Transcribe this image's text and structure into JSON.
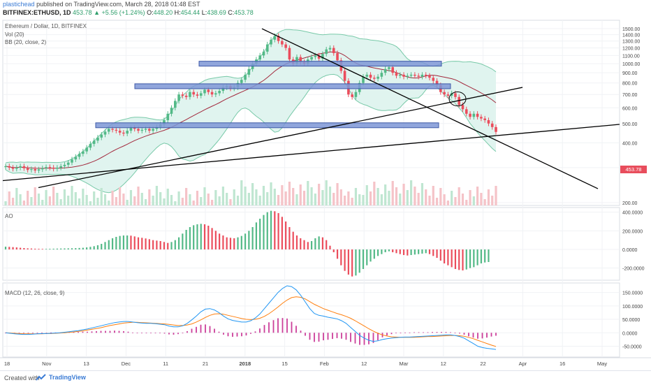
{
  "header": {
    "publisher": "plastichead",
    "published_text": "published on TradingView.com, March 28, 2018 01:48 EST",
    "symbol": "BITFINEX:ETHUSD, 1D",
    "last": "453.78",
    "change": "+5.56 (+1.24%)",
    "open_label": "O:",
    "open": "448.20",
    "high_label": "H:",
    "high": "454.44",
    "low_label": "L:",
    "low": "438.69",
    "close_label": "C:",
    "close": "453.78"
  },
  "legends": {
    "main_title": "Ethereum / Dollar, 1D, BITFINEX",
    "vol": "Vol (20)",
    "bb": "BB (20, close, 2)",
    "ao": "AO",
    "macd": "MACD (12, 26, close, 9)"
  },
  "price_tag": "453.78",
  "footer": {
    "created_with": "Created with",
    "brand": "TradingView"
  },
  "colors": {
    "up": "#53b987",
    "down": "#eb4d5c",
    "bb_fill": "#e0f4ef",
    "bb_line": "#78c9a8",
    "bb_mid": "#a2293d",
    "macd": "#2196f3",
    "signal": "#ff7f0e",
    "hist": "#cc3f9a",
    "sr_box": "#7e96d6"
  },
  "chart_data": [
    {
      "type": "candlestick",
      "title": "Ethereum / Dollar, 1D, BITFINEX",
      "x_ticks": [
        "18",
        "Nov",
        "13",
        "Dec",
        "11",
        "21",
        "2018",
        "15",
        "Feb",
        "12",
        "Mar",
        "12",
        "22",
        "Apr",
        "16",
        "May"
      ],
      "y_ticks": [
        "1500.00",
        "1400.00",
        "1300.00",
        "1200.00",
        "1100.00",
        "1000.00",
        "900.00",
        "800.00",
        "700.00",
        "600.00",
        "500.00",
        "400.00",
        "300.00",
        "200.00"
      ],
      "y_scale": "log",
      "ylim": [
        200,
        1550
      ],
      "close_series": [
        305,
        300,
        296,
        300,
        305,
        298,
        292,
        295,
        290,
        294,
        298,
        302,
        300,
        296,
        300,
        305,
        310,
        318,
        330,
        340,
        352,
        362,
        378,
        395,
        410,
        425,
        440,
        455,
        470,
        465,
        460,
        450,
        445,
        460,
        475,
        470,
        460,
        465,
        470,
        460,
        470,
        480,
        495,
        520,
        560,
        600,
        650,
        700,
        690,
        680,
        720,
        700,
        690,
        710,
        740,
        720,
        700,
        710,
        730,
        760,
        770,
        750,
        760,
        800,
        830,
        880,
        940,
        1000,
        1050,
        1100,
        1150,
        1250,
        1320,
        1380,
        1300,
        1250,
        1200,
        1050,
        1000,
        1080,
        1020,
        1000,
        1050,
        1080,
        1100,
        1060,
        1120,
        1180,
        1200,
        1130,
        1040,
        920,
        820,
        700,
        680,
        720,
        800,
        860,
        880,
        850,
        840,
        860,
        900,
        940,
        960,
        900,
        870,
        880,
        860,
        870,
        880,
        870,
        860,
        880,
        870,
        850,
        820,
        780,
        720,
        700,
        690,
        710,
        680,
        620,
        590,
        560,
        540,
        560,
        540,
        530,
        520,
        500,
        480,
        453.78
      ],
      "volume_scale": "relative",
      "bollinger": {
        "upper_note": "shaded band",
        "mid_color": "#a2293d"
      },
      "annotations": {
        "horizontal_zones": [
          1000,
          770,
          490
        ],
        "trendlines": [
          "descending resistance",
          "ascending support",
          "lower ascending support"
        ]
      }
    },
    {
      "type": "bar",
      "title": "AO",
      "y_ticks": [
        "400.0000",
        "200.0000",
        "0.0000",
        "-200.0000"
      ],
      "ylim": [
        -300,
        420
      ],
      "values": [
        30,
        28,
        25,
        22,
        18,
        15,
        12,
        10,
        8,
        7,
        6,
        6,
        7,
        8,
        9,
        10,
        11,
        12,
        13,
        14,
        16,
        18,
        22,
        28,
        35,
        45,
        60,
        80,
        100,
        120,
        135,
        145,
        150,
        150,
        148,
        140,
        130,
        125,
        118,
        110,
        100,
        95,
        90,
        80,
        70,
        80,
        100,
        130,
        170,
        210,
        240,
        260,
        270,
        275,
        270,
        255,
        230,
        200,
        170,
        150,
        130,
        125,
        120,
        130,
        145,
        170,
        200,
        240,
        290,
        330,
        370,
        400,
        415,
        410,
        390,
        350,
        300,
        240,
        190,
        150,
        120,
        100,
        80,
        90,
        120,
        140,
        130,
        100,
        40,
        -30,
        -100,
        -170,
        -230,
        -270,
        -290,
        -280,
        -250,
        -210,
        -170,
        -130,
        -100,
        -70,
        -50,
        -30,
        -20,
        -30,
        -40,
        -50,
        -60,
        -65,
        -60,
        -55,
        -50,
        -45,
        -40,
        -50,
        -70,
        -90,
        -120,
        -150,
        -170,
        -190,
        -210,
        -220,
        -225,
        -215,
        -200,
        -190,
        -170,
        -150,
        -140,
        -135
      ]
    },
    {
      "type": "line",
      "title": "MACD (12, 26, close, 9)",
      "y_ticks": [
        "150.0000",
        "100.0000",
        "50.0000",
        "0.0000",
        "-50.0000"
      ],
      "ylim": [
        -80,
        175
      ],
      "series": [
        {
          "name": "MACD",
          "values": [
            0,
            -2,
            -4,
            -5,
            -6,
            -6,
            -5,
            -4,
            -3,
            -3,
            -2,
            -1,
            0,
            2,
            4,
            6,
            8,
            11,
            14,
            18,
            22,
            26,
            30,
            34,
            38,
            40,
            42,
            42,
            40,
            38,
            36,
            35,
            35,
            34,
            32,
            30,
            25,
            22,
            22,
            26,
            35,
            48,
            62,
            78,
            88,
            90,
            85,
            75,
            62,
            52,
            46,
            43,
            40,
            40,
            45,
            55,
            70,
            90,
            110,
            130,
            150,
            165,
            175,
            172,
            160,
            140,
            115,
            90,
            72,
            65,
            62,
            58,
            55,
            52,
            45,
            35,
            20,
            5,
            -10,
            -20,
            -28,
            -32,
            -30,
            -25,
            -22,
            -20,
            -18,
            -17,
            -16,
            -16,
            -15,
            -14,
            -13,
            -12,
            -11,
            -10,
            -9,
            -8,
            -8,
            -10,
            -14,
            -20,
            -30,
            -40,
            -50,
            -55,
            -58,
            -60,
            -62
          ]
        },
        {
          "name": "Signal",
          "values": [
            0,
            -1,
            -2,
            -3,
            -4,
            -4,
            -4,
            -4,
            -4,
            -3,
            -3,
            -2,
            -1,
            0,
            2,
            3,
            5,
            7,
            10,
            13,
            16,
            19,
            23,
            27,
            30,
            33,
            36,
            38,
            39,
            39,
            38,
            37,
            36,
            35,
            34,
            33,
            31,
            29,
            27,
            27,
            29,
            33,
            40,
            48,
            57,
            65,
            70,
            71,
            69,
            65,
            61,
            57,
            53,
            50,
            49,
            50,
            54,
            61,
            71,
            83,
            96,
            110,
            122,
            131,
            134,
            132,
            126,
            116,
            106,
            98,
            90,
            84,
            78,
            72,
            67,
            61,
            54,
            45,
            35,
            25,
            15,
            6,
            -2,
            -8,
            -12,
            -15,
            -16,
            -17,
            -17,
            -17,
            -17,
            -16,
            -15,
            -14,
            -14,
            -13,
            -12,
            -11,
            -10,
            -10,
            -11,
            -13,
            -17,
            -22,
            -28,
            -34,
            -40,
            -46,
            -51
          ]
        }
      ]
    }
  ]
}
